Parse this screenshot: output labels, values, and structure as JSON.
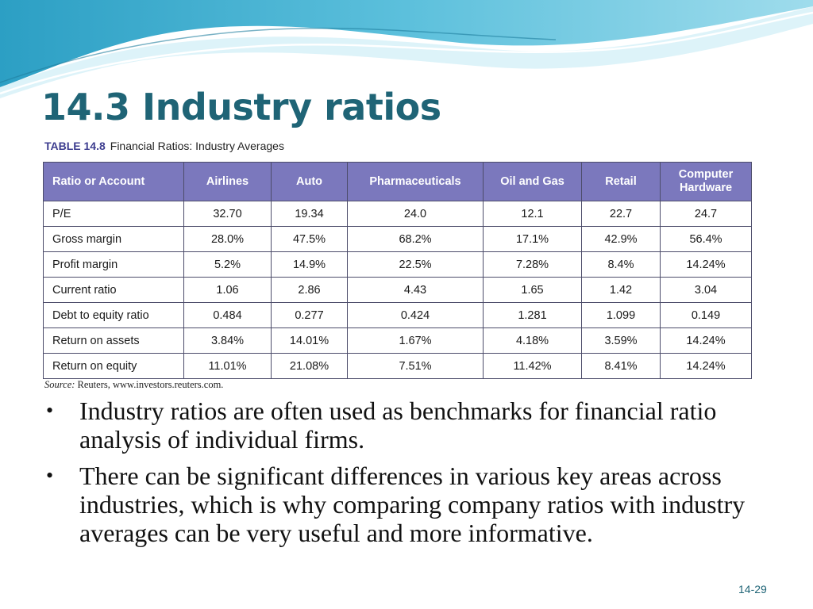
{
  "slide": {
    "title": "14.3 Industry ratios",
    "table_caption": {
      "number": "TABLE 14.8",
      "text": "Financial Ratios: Industry Averages"
    },
    "table": {
      "headers": [
        "Ratio or Account",
        "Airlines",
        "Auto",
        "Pharmaceuticals",
        "Oil and Gas",
        "Retail",
        "Computer Hardware"
      ],
      "rows": [
        [
          "P/E",
          "32.70",
          "19.34",
          "24.0",
          "12.1",
          "22.7",
          "24.7"
        ],
        [
          "Gross margin",
          "28.0%",
          "47.5%",
          "68.2%",
          "17.1%",
          "42.9%",
          "56.4%"
        ],
        [
          "Profit margin",
          "5.2%",
          "14.9%",
          "22.5%",
          "7.28%",
          "8.4%",
          "14.24%"
        ],
        [
          "Current ratio",
          "1.06",
          "2.86",
          "4.43",
          "1.65",
          "1.42",
          "3.04"
        ],
        [
          "Debt to equity ratio",
          "0.484",
          "0.277",
          "0.424",
          "1.281",
          "1.099",
          "0.149"
        ],
        [
          "Return on assets",
          "3.84%",
          "14.01%",
          "1.67%",
          "4.18%",
          "3.59%",
          "14.24%"
        ],
        [
          "Return on equity",
          "11.01%",
          "21.08%",
          "7.51%",
          "11.42%",
          "8.41%",
          "14.24%"
        ]
      ]
    },
    "source": {
      "label": "Source:",
      "text": "Reuters, www.investors.reuters.com."
    },
    "bullets": [
      "Industry ratios are often used as benchmarks for financial ratio analysis of individual firms.",
      "There can be significant differences in various key areas across industries, which is why comparing company ratios with industry averages can be very useful and more informative."
    ],
    "page_number": "14-29"
  },
  "colors": {
    "title": "#1f6476",
    "header_bg": "#7b78bd",
    "wave_dark": "#2c9fc4",
    "wave_light": "#bfe8f2"
  }
}
